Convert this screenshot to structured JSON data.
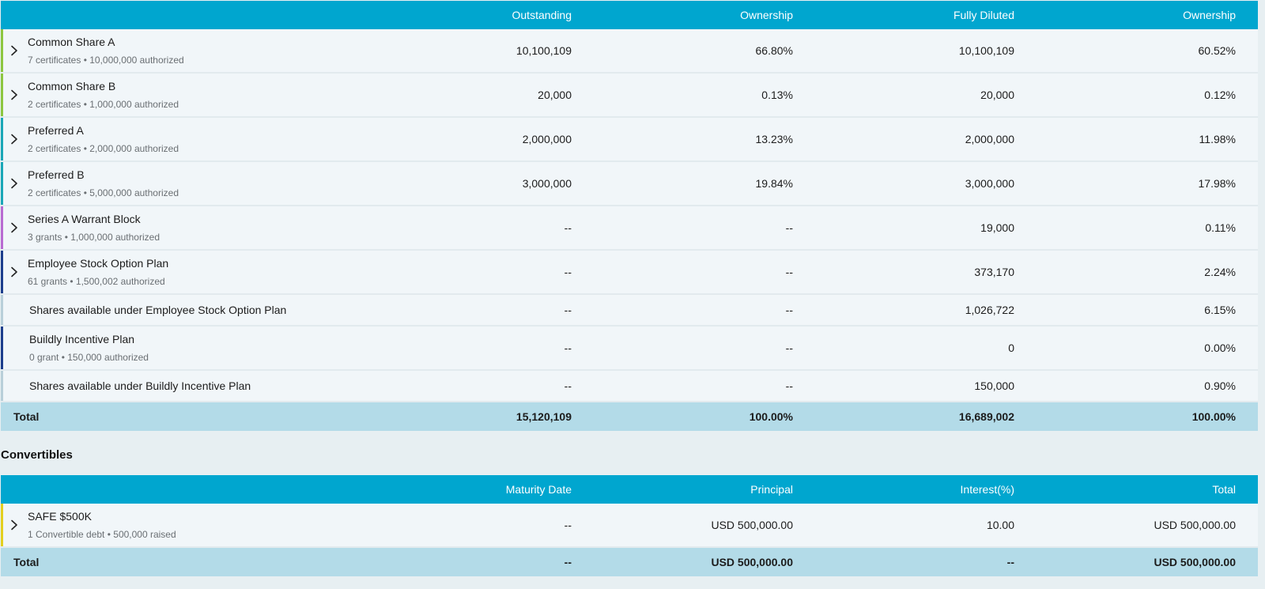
{
  "cap_table": {
    "headers": [
      "",
      "Outstanding",
      "Ownership",
      "Fully Diluted",
      "Ownership"
    ],
    "rows": [
      {
        "title": "Common Share A",
        "sub": "7 certificates • 10,000,000 authorized",
        "outstanding": "10,100,109",
        "ownership": "66.80%",
        "fully_diluted": "10,100,109",
        "fd_ownership": "60.52%",
        "color": "#8cc63f",
        "expandable": true
      },
      {
        "title": "Common Share B",
        "sub": "2 certificates • 1,000,000 authorized",
        "outstanding": "20,000",
        "ownership": "0.13%",
        "fully_diluted": "20,000",
        "fd_ownership": "0.12%",
        "color": "#8cc63f",
        "expandable": true
      },
      {
        "title": "Preferred A",
        "sub": "2 certificates • 2,000,000 authorized",
        "outstanding": "2,000,000",
        "ownership": "13.23%",
        "fully_diluted": "2,000,000",
        "fd_ownership": "11.98%",
        "color": "#1aa6b7",
        "expandable": true
      },
      {
        "title": "Preferred B",
        "sub": "2 certificates • 5,000,000 authorized",
        "outstanding": "3,000,000",
        "ownership": "19.84%",
        "fully_diluted": "3,000,000",
        "fd_ownership": "17.98%",
        "color": "#1aa6b7",
        "expandable": true
      },
      {
        "title": "Series A Warrant Block",
        "sub": "3 grants • 1,000,000 authorized",
        "outstanding": "--",
        "ownership": "--",
        "fully_diluted": "19,000",
        "fd_ownership": "0.11%",
        "color": "#b86ad1",
        "expandable": true
      },
      {
        "title": "Employee Stock Option Plan",
        "sub": "61 grants • 1,500,002 authorized",
        "outstanding": "--",
        "ownership": "--",
        "fully_diluted": "373,170",
        "fd_ownership": "2.24%",
        "color": "#1c3d8c",
        "expandable": true
      },
      {
        "title": "Shares available under Employee Stock Option Plan",
        "sub": "",
        "outstanding": "--",
        "ownership": "--",
        "fully_diluted": "1,026,722",
        "fd_ownership": "6.15%",
        "color": "#b8cfd9",
        "expandable": false
      },
      {
        "title": "Buildly Incentive Plan",
        "sub": "0 grant • 150,000 authorized",
        "outstanding": "--",
        "ownership": "--",
        "fully_diluted": "0",
        "fd_ownership": "0.00%",
        "color": "#1c3d8c",
        "expandable": false
      },
      {
        "title": "Shares available under Buildly Incentive Plan",
        "sub": "",
        "outstanding": "--",
        "ownership": "--",
        "fully_diluted": "150,000",
        "fd_ownership": "0.90%",
        "color": "#b8cfd9",
        "expandable": false
      }
    ],
    "total": {
      "label": "Total",
      "outstanding": "15,120,109",
      "ownership": "100.00%",
      "fully_diluted": "16,689,002",
      "fd_ownership": "100.00%"
    }
  },
  "convertibles": {
    "section_title": "Convertibles",
    "headers": [
      "",
      "Maturity Date",
      "Principal",
      "Interest(%)",
      "Total"
    ],
    "rows": [
      {
        "title": "SAFE $500K",
        "sub": "1 Convertible debt • 500,000 raised",
        "maturity": "--",
        "principal": "USD 500,000.00",
        "interest": "10.00",
        "total": "USD 500,000.00",
        "color": "#e3cf1e",
        "expandable": true
      }
    ],
    "total": {
      "label": "Total",
      "maturity": "--",
      "principal": "USD 500,000.00",
      "interest": "--",
      "total": "USD 500,000.00"
    }
  },
  "icons": {
    "expand": "chevron-right-icon"
  }
}
